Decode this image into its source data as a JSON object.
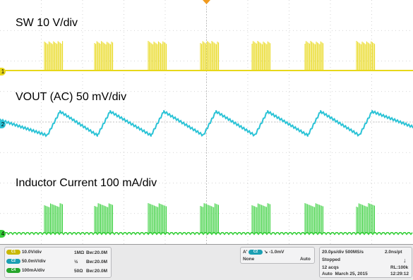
{
  "labels": {
    "sw": "SW 10 V/div",
    "vout": "VOUT (AC) 50 mV/div",
    "il": "Inductor Current 100 mA/div"
  },
  "markers": {
    "ch1": "1",
    "ch2": "2",
    "ch4": "4"
  },
  "colors": {
    "ch1": "#e8d81a",
    "ch2": "#2bc3d6",
    "ch4": "#36cf3a",
    "grid": "#c8c8c8"
  },
  "status": {
    "channels": [
      {
        "badge": "C1",
        "scale": "10.0V/div",
        "coupling": "1MΩ",
        "bw": "Bw:20.0M"
      },
      {
        "badge": "C2",
        "scale": "50.0mV/div",
        "coupling": "½",
        "bw": "Bw:20.0M"
      },
      {
        "badge": "C4",
        "scale": "100mA/div",
        "coupling": "50Ω",
        "bw": "Bw:20.0M"
      }
    ],
    "trigger": {
      "src_a": "A'",
      "badge": "C2",
      "level": "-1.0mV",
      "none": "None",
      "mode": "Auto"
    },
    "timebase": {
      "div": "20.0µs/div",
      "rate": "500MS/s",
      "pt": "2.0ns/pt",
      "state": "Stopped",
      "acqs": "12 acqs",
      "rl": "RL:100k",
      "auto": "Auto",
      "date": "March 25, 2015",
      "time": "12:29:12"
    }
  }
}
